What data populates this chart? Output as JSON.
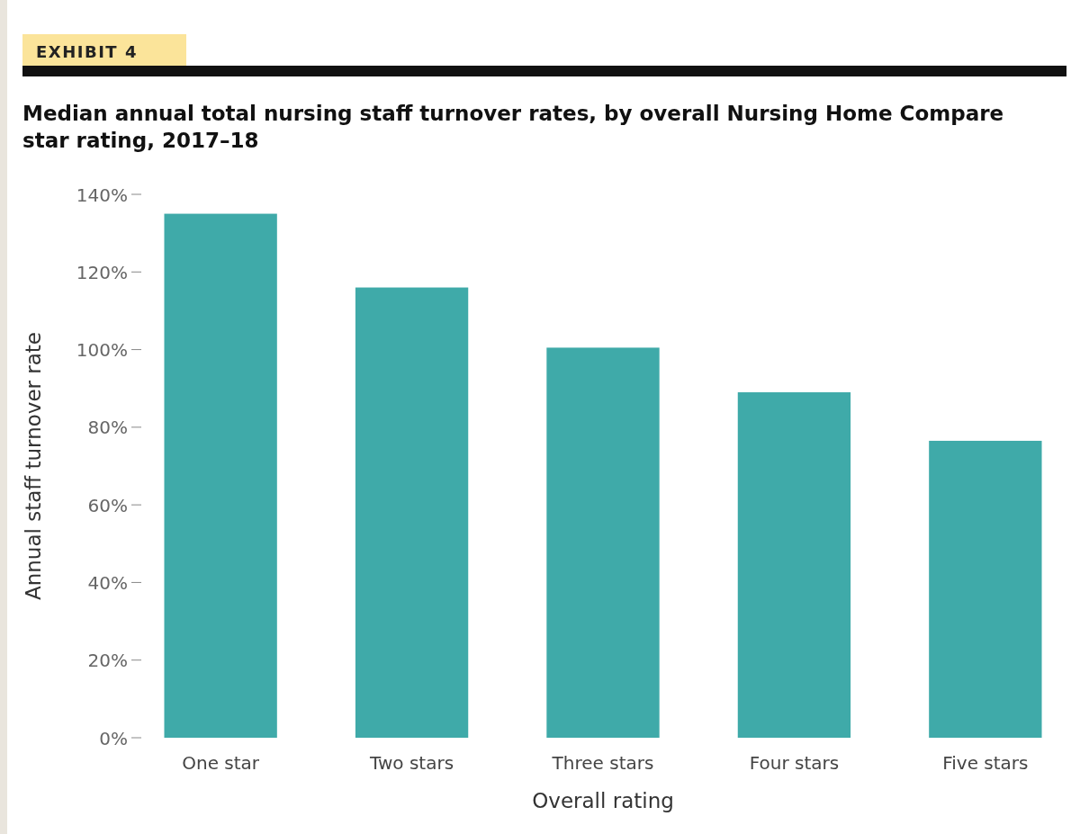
{
  "chart_data": {
    "type": "bar",
    "title": "Median annual total nursing staff turnover rates, by overall Nursing Home Compare star rating, 2017–18",
    "annotations": [
      "EXHIBIT 4"
    ],
    "xlabel": "Overall rating",
    "ylabel": "Annual staff turnover rate",
    "categories": [
      "One star",
      "Two stars",
      "Three stars",
      "Four stars",
      "Five stars"
    ],
    "values": [
      135,
      116,
      100.5,
      89,
      76.5
    ],
    "color": "#3faaa9",
    "ylim": [
      0,
      140
    ],
    "yticks": [
      {
        "value": 0,
        "label": "0%"
      },
      {
        "value": 20,
        "label": "20%"
      },
      {
        "value": 40,
        "label": "40%"
      },
      {
        "value": 60,
        "label": "60%"
      },
      {
        "value": 80,
        "label": "80%"
      },
      {
        "value": 100,
        "label": "100%"
      },
      {
        "value": 120,
        "label": "120%"
      },
      {
        "value": 140,
        "label": "140%"
      }
    ],
    "grid": false
  }
}
